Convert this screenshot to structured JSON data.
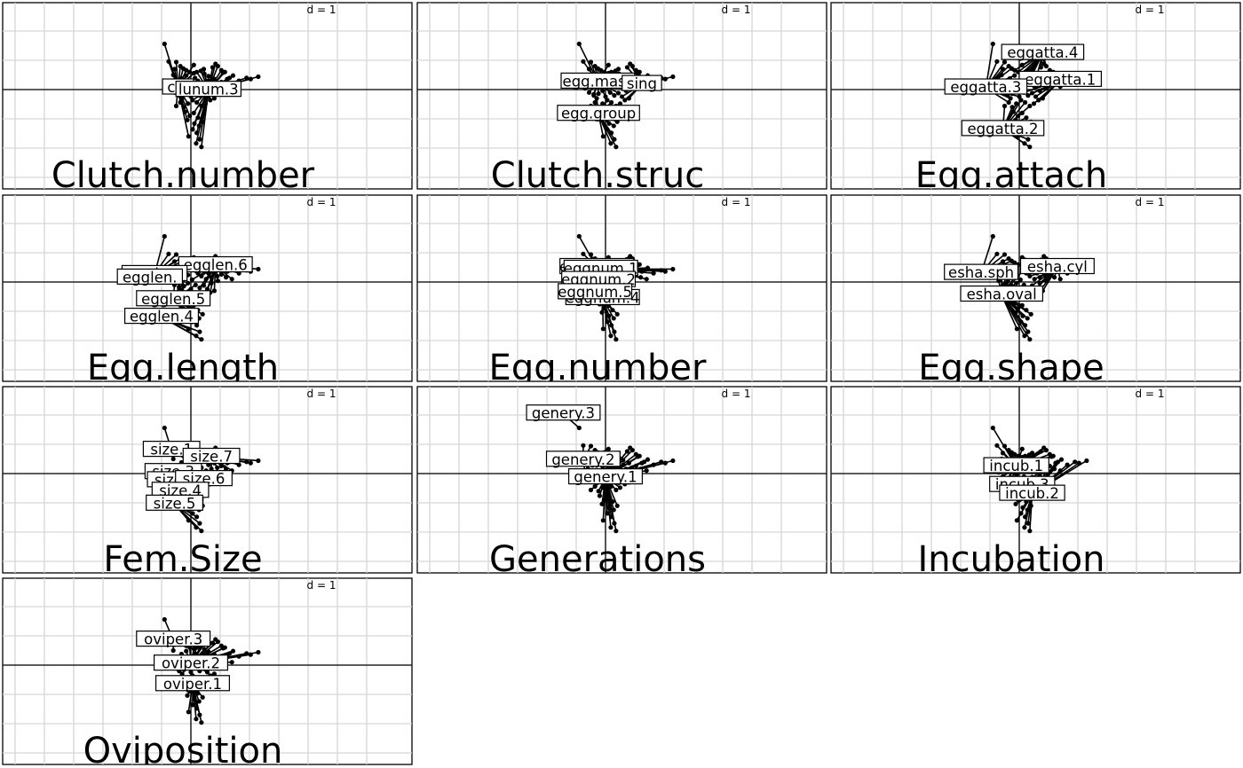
{
  "chart_data": {
    "type": "scatter",
    "grid_scale_label": "d = 1",
    "points": [
      [
        -0.45,
        0.78
      ],
      [
        -0.38,
        0.48
      ],
      [
        -0.25,
        0.47
      ],
      [
        -0.18,
        0.4
      ],
      [
        -0.13,
        0.36
      ],
      [
        -0.08,
        0.33
      ],
      [
        -0.02,
        0.3
      ],
      [
        0.05,
        0.28
      ],
      [
        0.1,
        0.3
      ],
      [
        0.17,
        0.32
      ],
      [
        0.23,
        0.27
      ],
      [
        0.3,
        0.23
      ],
      [
        0.37,
        0.38
      ],
      [
        0.42,
        0.44
      ],
      [
        0.46,
        0.4
      ],
      [
        0.52,
        0.33
      ],
      [
        0.55,
        0.29
      ],
      [
        0.58,
        0.3
      ],
      [
        0.62,
        0.18
      ],
      [
        0.66,
        0.2
      ],
      [
        0.72,
        0.24
      ],
      [
        0.82,
        0.15
      ],
      [
        0.95,
        0.2
      ],
      [
        1.02,
        0.18
      ],
      [
        1.15,
        0.22
      ],
      [
        0.52,
        0.13
      ],
      [
        0.6,
        0.08
      ],
      [
        0.46,
        0.02
      ],
      [
        0.35,
        -0.02
      ],
      [
        0.26,
        0.05
      ],
      [
        0.18,
        0.1
      ],
      [
        0.12,
        0.15
      ],
      [
        -0.05,
        0.12
      ],
      [
        -0.16,
        0.19
      ],
      [
        -0.22,
        0.14
      ],
      [
        -0.3,
        0.08
      ],
      [
        -0.35,
        0.02
      ],
      [
        -0.28,
        -0.05
      ],
      [
        -0.2,
        -0.1
      ],
      [
        -0.12,
        -0.07
      ],
      [
        -0.05,
        -0.02
      ],
      [
        0.02,
        0.04
      ],
      [
        0.08,
        -0.05
      ],
      [
        0.15,
        -0.1
      ],
      [
        0.22,
        -0.06
      ],
      [
        0.28,
        -0.12
      ],
      [
        0.33,
        -0.18
      ],
      [
        0.25,
        -0.24
      ],
      [
        0.18,
        -0.28
      ],
      [
        0.1,
        -0.22
      ],
      [
        0.03,
        -0.18
      ],
      [
        -0.05,
        -0.24
      ],
      [
        -0.12,
        -0.3
      ],
      [
        -0.18,
        -0.22
      ],
      [
        -0.25,
        -0.28
      ],
      [
        -0.1,
        -0.38
      ],
      [
        -0.02,
        -0.45
      ],
      [
        0.05,
        -0.4
      ],
      [
        0.12,
        -0.48
      ],
      [
        0.2,
        -0.55
      ],
      [
        0.14,
        -0.62
      ],
      [
        0.06,
        -0.58
      ],
      [
        -0.06,
        -0.52
      ],
      [
        0.03,
        -0.68
      ],
      [
        0.1,
        -0.74
      ],
      [
        0.15,
        -0.85
      ],
      [
        0.09,
        -0.92
      ],
      [
        0.18,
        -0.98
      ],
      [
        -0.04,
        -0.8
      ],
      [
        -0.2,
        -0.08
      ],
      [
        0.4,
        -0.15
      ],
      [
        0.45,
        0.1
      ],
      [
        0.07,
        0.2
      ],
      [
        -0.08,
        0.24
      ],
      [
        0.3,
        0.15
      ],
      [
        -0.3,
        0.25
      ],
      [
        0.7,
        0.05
      ],
      [
        0.4,
        0.18
      ],
      [
        -0.15,
        -0.15
      ],
      [
        0.0,
        -0.12
      ],
      [
        0.22,
        0.35
      ],
      [
        -0.28,
        0.35
      ],
      [
        0.05,
        0.42
      ],
      [
        0.35,
        0.08
      ]
    ],
    "panels": [
      {
        "title": "Clutch.number",
        "categories": [
          {
            "name": "clunum.1",
            "shown": "clu",
            "cx": -0.22,
            "cy": 0.03
          },
          {
            "name": "clunum.3",
            "shown": "lunum.3",
            "cx": 0.3,
            "cy": -0.01
          }
        ]
      },
      {
        "title": "Clutch.struc",
        "categories": [
          {
            "name": "egg.mass",
            "shown": "egg.mass",
            "cx": -0.13,
            "cy": 0.13
          },
          {
            "name": "egg.single",
            "shown": "sing",
            "cx": 0.62,
            "cy": 0.09
          },
          {
            "name": "egg.group",
            "shown": "egg.group",
            "cx": -0.12,
            "cy": -0.42
          }
        ]
      },
      {
        "title": "Egg.attach",
        "categories": [
          {
            "name": "eggatta.4",
            "shown": "eggatta.4",
            "cx": 0.4,
            "cy": 0.62
          },
          {
            "name": "eggatta.1",
            "shown": "eggatta.1",
            "cx": 0.7,
            "cy": 0.16
          },
          {
            "name": "eggatta.3",
            "shown": "eggatta.3",
            "cx": -0.57,
            "cy": 0.03
          },
          {
            "name": "eggatta.2",
            "shown": "eggatta.2",
            "cx": -0.28,
            "cy": -0.68
          }
        ]
      },
      {
        "title": "Egg.length",
        "categories": [
          {
            "name": "egglen.6",
            "shown": "egglen.6",
            "cx": 0.42,
            "cy": 0.28
          },
          {
            "name": "egglen.2",
            "shown": "egglen.",
            "cx": -0.62,
            "cy": 0.13
          },
          {
            "name": "egglen.1",
            "shown": "egglen.",
            "cx": -0.7,
            "cy": 0.07
          },
          {
            "name": "egglen.5",
            "shown": "egglen.5",
            "cx": -0.3,
            "cy": -0.3
          },
          {
            "name": "egglen.4",
            "shown": "egglen.4",
            "cx": -0.5,
            "cy": -0.6
          }
        ]
      },
      {
        "title": "Egg.number",
        "categories": [
          {
            "name": "eggnum.3",
            "shown": "eggnum.3",
            "cx": -0.15,
            "cy": 0.25
          },
          {
            "name": "eggnum.1",
            "shown": "eggnum.1",
            "cx": -0.08,
            "cy": 0.22
          },
          {
            "name": "eggnum.2",
            "shown": "eggnum.2",
            "cx": -0.12,
            "cy": 0.03
          },
          {
            "name": "eggnum.4",
            "shown": "eggnum.4",
            "cx": -0.05,
            "cy": -0.28
          },
          {
            "name": "eggnum.5",
            "shown": "eggnum.5",
            "cx": -0.18,
            "cy": -0.18
          }
        ]
      },
      {
        "title": "Egg.shape",
        "categories": [
          {
            "name": "esha.sph",
            "shown": "esha.sph",
            "cx": -0.65,
            "cy": 0.15
          },
          {
            "name": "esha.cyl",
            "shown": "esha.cyl",
            "cx": 0.65,
            "cy": 0.25
          },
          {
            "name": "esha.oval",
            "shown": "esha.oval",
            "cx": -0.3,
            "cy": -0.22
          }
        ]
      },
      {
        "title": "Fem.Size",
        "categories": [
          {
            "name": "size.1",
            "shown": "size.1",
            "cx": -0.33,
            "cy": 0.4
          },
          {
            "name": "size.7",
            "shown": "size.7",
            "cx": 0.35,
            "cy": 0.28
          },
          {
            "name": "size.3",
            "shown": "size.3",
            "cx": -0.3,
            "cy": 0.02
          },
          {
            "name": "size.2",
            "shown": "size.2",
            "cx": -0.26,
            "cy": -0.12
          },
          {
            "name": "size.6",
            "shown": "size.6",
            "cx": 0.22,
            "cy": -0.1
          },
          {
            "name": "size.4",
            "shown": "size.4",
            "cx": -0.18,
            "cy": -0.3
          },
          {
            "name": "size.5",
            "shown": "size.5",
            "cx": -0.28,
            "cy": -0.52
          }
        ]
      },
      {
        "title": "Generations",
        "categories": [
          {
            "name": "genery.3",
            "shown": "genery.3",
            "cx": -0.72,
            "cy": 1.02
          },
          {
            "name": "genery.2",
            "shown": "genery.2",
            "cx": -0.38,
            "cy": 0.23
          },
          {
            "name": "genery.1",
            "shown": "genery.1",
            "cx": 0.0,
            "cy": -0.07
          }
        ]
      },
      {
        "title": "Incubation",
        "categories": [
          {
            "name": "incub.1",
            "shown": "incub.1",
            "cx": -0.05,
            "cy": 0.12
          },
          {
            "name": "incub.3",
            "shown": "incub.3",
            "cx": 0.05,
            "cy": -0.2
          },
          {
            "name": "incub.2",
            "shown": "incub.2",
            "cx": 0.22,
            "cy": -0.35
          }
        ]
      },
      {
        "title": "Oviposition",
        "categories": [
          {
            "name": "oviper.3",
            "shown": "oviper.3",
            "cx": -0.3,
            "cy": 0.43
          },
          {
            "name": "oviper.2",
            "shown": "oviper.2",
            "cx": 0.0,
            "cy": 0.02
          },
          {
            "name": "oviper.1",
            "shown": "oviper.1",
            "cx": 0.03,
            "cy": -0.33
          }
        ]
      }
    ]
  }
}
